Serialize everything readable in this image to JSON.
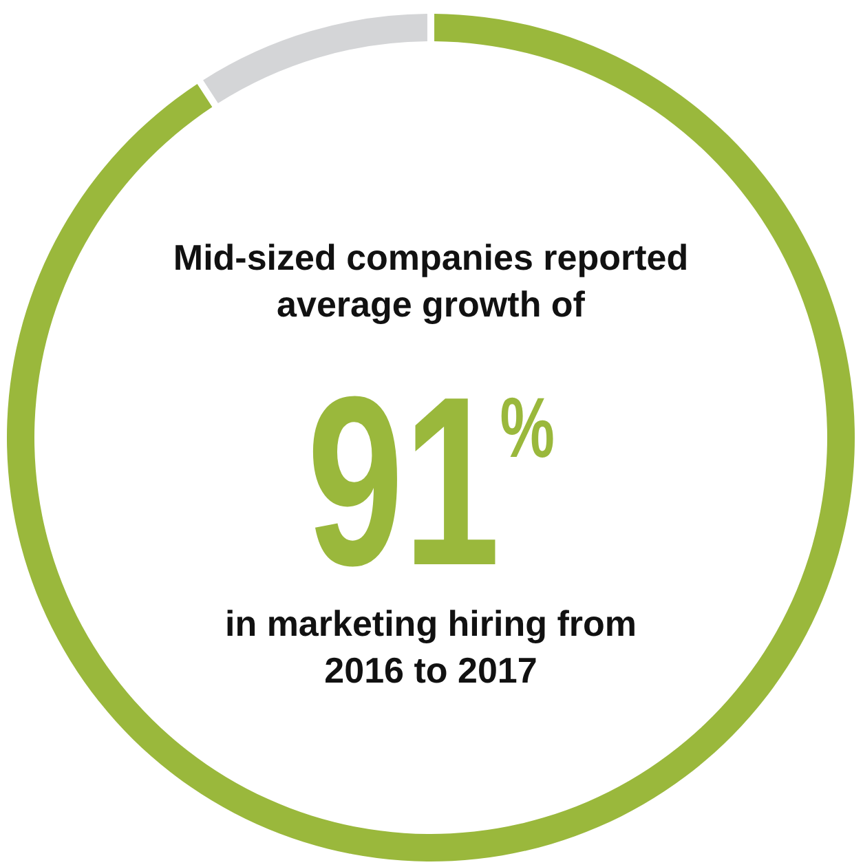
{
  "chart_data": {
    "type": "donut",
    "title": "Mid-sized companies reported average growth of",
    "annotations": [
      "in marketing hiring from 2016 to 2017"
    ],
    "categories": [
      null,
      null
    ],
    "values": [
      91,
      9
    ],
    "colors": [
      "#9ab83c",
      "#d4d5d7"
    ],
    "value_labels": [
      "91$^{%}$",
      null
    ]
  }
}
